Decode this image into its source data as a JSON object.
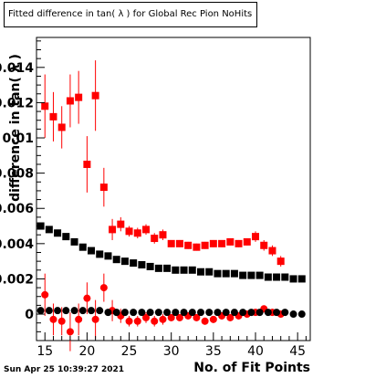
{
  "title": "Fitted difference in tan( λ ) for Global Rec Pion NoHits",
  "datestamp": "Sun Apr 25 10:39:27 2021",
  "chart_data": {
    "type": "scatter",
    "title": "Fitted difference in tan( λ ) for Global Rec Pion NoHits",
    "xlabel": "No. of Fit Points",
    "ylabel": "difference  in  tan( λ )",
    "xlim": [
      14,
      46.5
    ],
    "ylim": [
      -0.0015,
      0.0157
    ],
    "x_ticks": [
      15,
      20,
      25,
      30,
      35,
      40,
      45
    ],
    "y_ticks": [
      0,
      0.002,
      0.004,
      0.006,
      0.008,
      0.01,
      0.012,
      0.014
    ],
    "y_tick_labels": [
      "0",
      "0.002",
      "0.004",
      "0.006",
      "0.008",
      "0.01",
      "0.012",
      "0.014"
    ],
    "series": [
      {
        "color": "#ff0000",
        "marker": "square",
        "x": [
          15,
          16,
          17,
          18,
          19,
          20,
          21,
          22,
          23,
          24,
          25,
          26,
          27,
          28,
          29,
          30,
          31,
          32,
          33,
          34,
          35,
          36,
          37,
          38,
          39,
          40,
          41,
          42,
          43
        ],
        "y": [
          0.0118,
          0.0112,
          0.0106,
          0.0121,
          0.0123,
          0.0085,
          0.0124,
          0.0072,
          0.0048,
          0.0051,
          0.0047,
          0.0046,
          0.0048,
          0.0043,
          0.0045,
          0.004,
          0.004,
          0.0039,
          0.0038,
          0.0039,
          0.004,
          0.004,
          0.0041,
          0.004,
          0.0041,
          0.0044,
          0.0039,
          0.0036,
          0.003
        ],
        "err": [
          0.0018,
          0.0014,
          0.0012,
          0.0015,
          0.0015,
          0.0016,
          0.002,
          0.0011,
          0.0006,
          0.0004,
          0.0003,
          0.0003,
          0.0003,
          0.0003,
          0.0003,
          0.0002,
          0.0002,
          0.0002,
          0.0002,
          0.0002,
          0.0002,
          0.0002,
          0.0002,
          0.0002,
          0.0002,
          0.0003,
          0.0003,
          0.0003,
          0.0003
        ]
      },
      {
        "color": "#000000",
        "marker": "square",
        "x": [
          14.5,
          15.5,
          16.5,
          17.5,
          18.5,
          19.5,
          20.5,
          21.5,
          22.5,
          23.5,
          24.5,
          25.5,
          26.5,
          27.5,
          28.5,
          29.5,
          30.5,
          31.5,
          32.5,
          33.5,
          34.5,
          35.5,
          36.5,
          37.5,
          38.5,
          39.5,
          40.5,
          41.5,
          42.5,
          43.5,
          44.5,
          45.5
        ],
        "y": [
          0.005,
          0.0048,
          0.0046,
          0.0044,
          0.0041,
          0.0038,
          0.0036,
          0.0034,
          0.0033,
          0.0031,
          0.003,
          0.0029,
          0.0028,
          0.0027,
          0.0026,
          0.0026,
          0.0025,
          0.0025,
          0.0025,
          0.0024,
          0.0024,
          0.0023,
          0.0023,
          0.0023,
          0.0022,
          0.0022,
          0.0022,
          0.0021,
          0.0021,
          0.0021,
          0.002,
          0.002
        ]
      },
      {
        "color": "#ff0000",
        "marker": "circle",
        "x": [
          15,
          16,
          17,
          18,
          19,
          20,
          21,
          22,
          23,
          24,
          25,
          26,
          27,
          28,
          29,
          30,
          31,
          32,
          33,
          34,
          35,
          36,
          37,
          38,
          39,
          40,
          41,
          42,
          43
        ],
        "y": [
          0.0011,
          -0.0003,
          -0.0004,
          -0.001,
          -0.0003,
          0.0009,
          -0.0003,
          0.0015,
          0.0002,
          -0.0001,
          -0.0004,
          -0.0004,
          -0.0002,
          -0.0004,
          -0.0003,
          -0.0002,
          -0.0002,
          -0.0001,
          -0.0002,
          -0.0004,
          -0.0003,
          -0.0001,
          -0.0002,
          -0.0001,
          0.0,
          0.0001,
          0.0003,
          0.0001,
          0.0
        ],
        "err": [
          0.0012,
          0.0009,
          0.0008,
          0.0011,
          0.0009,
          0.0009,
          0.0011,
          0.0008,
          0.0006,
          0.0004,
          0.0003,
          0.0003,
          0.0003,
          0.0003,
          0.0003,
          0.0002,
          0.0002,
          0.0002,
          0.0002,
          0.0002,
          0.0002,
          0.0002,
          0.0002,
          0.0002,
          0.0002,
          0.0002,
          0.0002,
          0.0002,
          0.0002
        ]
      },
      {
        "color": "#000000",
        "marker": "circle",
        "x": [
          14.5,
          15.5,
          16.5,
          17.5,
          18.5,
          19.5,
          20.5,
          21.5,
          22.5,
          23.5,
          24.5,
          25.5,
          26.5,
          27.5,
          28.5,
          29.5,
          30.5,
          31.5,
          32.5,
          33.5,
          34.5,
          35.5,
          36.5,
          37.5,
          38.5,
          39.5,
          40.5,
          41.5,
          42.5,
          43.5,
          44.5,
          45.5
        ],
        "y": [
          0.0002,
          0.0002,
          0.0002,
          0.0002,
          0.0002,
          0.0002,
          0.0002,
          0.0002,
          0.0001,
          0.0001,
          0.0001,
          0.0001,
          0.0001,
          0.0001,
          0.0001,
          0.0001,
          0.0001,
          0.0001,
          0.0001,
          0.0001,
          0.0001,
          0.0001,
          0.0001,
          0.0001,
          0.0001,
          0.0001,
          0.0001,
          0.0001,
          0.0001,
          0.0001,
          0.0,
          0.0
        ]
      }
    ]
  }
}
